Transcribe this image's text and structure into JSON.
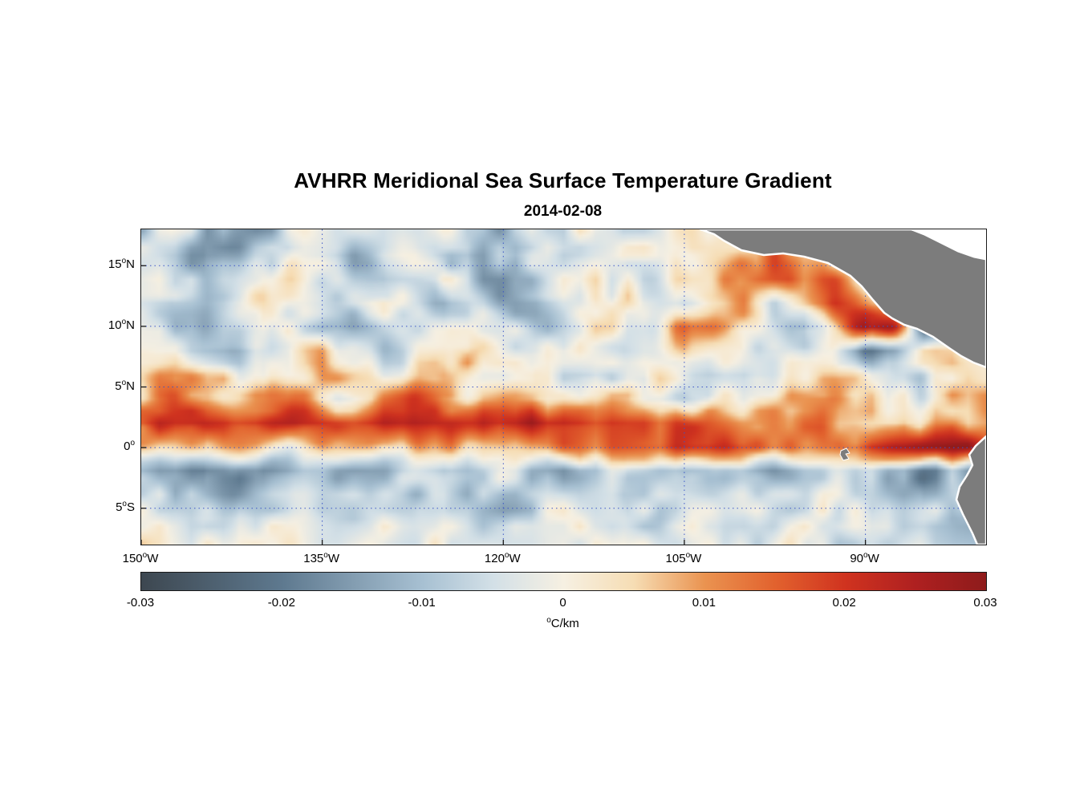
{
  "figure": {
    "title": "AVHRR Meridional Sea Surface Temperature Gradient",
    "subtitle": "2014-02-08"
  },
  "colors": {
    "land": "#7c7c7c",
    "coast_outline": "#ffffff",
    "caribbean_fill": "#ffffff",
    "grid_dots": "#3a55c8",
    "axis": "#1a1a1a",
    "background": "#ffffff"
  },
  "axes": {
    "xlim": [
      -150,
      -80
    ],
    "ylim": [
      -8,
      18
    ],
    "x_ticks": [
      {
        "lon": -150,
        "text": "150",
        "sup": "o",
        "suffix": "W"
      },
      {
        "lon": -135,
        "text": "135",
        "sup": "o",
        "suffix": "W"
      },
      {
        "lon": -120,
        "text": "120",
        "sup": "o",
        "suffix": "W"
      },
      {
        "lon": -105,
        "text": "105",
        "sup": "o",
        "suffix": "W"
      },
      {
        "lon": -90,
        "text": "90",
        "sup": "o",
        "suffix": "W"
      }
    ],
    "y_ticks": [
      {
        "lat": 15,
        "text": "15",
        "sup": "o",
        "suffix": "N"
      },
      {
        "lat": 10,
        "text": "10",
        "sup": "o",
        "suffix": "N"
      },
      {
        "lat": 5,
        "text": "5",
        "sup": "o",
        "suffix": "N"
      },
      {
        "lat": 0,
        "text": "0",
        "sup": "o",
        "suffix": ""
      },
      {
        "lat": -5,
        "text": "5",
        "sup": "o",
        "suffix": "S"
      }
    ]
  },
  "colorbar": {
    "min": -0.03,
    "max": 0.03,
    "ticks": [
      {
        "value": -0.03,
        "label": "-0.03"
      },
      {
        "value": -0.02,
        "label": "-0.02"
      },
      {
        "value": -0.01,
        "label": "-0.01"
      },
      {
        "value": 0,
        "label": "0"
      },
      {
        "value": 0.01,
        "label": "0.01"
      },
      {
        "value": 0.02,
        "label": "0.02"
      },
      {
        "value": 0.03,
        "label": "0.03"
      }
    ],
    "unit": {
      "sup": "o",
      "text": "C/km"
    },
    "stops": [
      [
        -0.03,
        "#3d4750"
      ],
      [
        -0.02,
        "#5e798f"
      ],
      [
        -0.01,
        "#a7c0d2"
      ],
      [
        -0.005,
        "#d3e0e7"
      ],
      [
        0.0,
        "#f6f0e2"
      ],
      [
        0.005,
        "#f6ddb4"
      ],
      [
        0.01,
        "#ea9350"
      ],
      [
        0.015,
        "#e2622e"
      ],
      [
        0.02,
        "#d0331f"
      ],
      [
        0.025,
        "#ae2020"
      ],
      [
        0.03,
        "#8e1b1b"
      ]
    ]
  },
  "chart_data": {
    "type": "heatmap",
    "title": "AVHRR Meridional Sea Surface Temperature Gradient",
    "subtitle": "2014-02-08",
    "colorbar_label": "°C/km",
    "colorbar_range": [
      -0.03,
      0.03
    ],
    "xlim": [
      -150,
      -80
    ],
    "ylim": [
      -8,
      18
    ],
    "grid": "dotted",
    "values_unit": "degC/km",
    "values_scale": 0.001,
    "lon": [
      -150,
      -147.5,
      -145,
      -142.5,
      -140,
      -137.5,
      -135,
      -132.5,
      -130,
      -127.5,
      -125,
      -122.5,
      -120,
      -117.5,
      -115,
      -112.5,
      -110,
      -107.5,
      -105,
      -102.5,
      -100,
      -97.5,
      -95,
      -92.5,
      -90,
      -87.5,
      -85,
      -82.5,
      -80
    ],
    "lat": [
      18,
      16,
      14,
      12,
      10,
      8,
      6,
      4,
      2,
      0,
      -2,
      -4,
      -6,
      -8
    ],
    "values": [
      [
        -8,
        -4,
        -12,
        -16,
        -10,
        -3,
        0,
        -4,
        -10,
        -6,
        -2,
        -6,
        -12,
        -8,
        -3,
        1,
        -5,
        -2,
        2,
        3,
        -1,
        1,
        2,
        0,
        0,
        0,
        0,
        0,
        0
      ],
      [
        -3,
        -8,
        -15,
        -12,
        -5,
        1,
        -7,
        -13,
        -6,
        -2,
        -8,
        -14,
        -9,
        -4,
        -7,
        -2,
        3,
        1,
        -3,
        4,
        8,
        18,
        6,
        2,
        0,
        0,
        0,
        0,
        0
      ],
      [
        2,
        -4,
        -10,
        -6,
        3,
        5,
        -3,
        -9,
        -12,
        -5,
        2,
        -10,
        -15,
        -8,
        -2,
        3,
        -2,
        -6,
        2,
        6,
        15,
        22,
        12,
        15,
        4,
        0,
        0,
        0,
        0
      ],
      [
        -6,
        -12,
        -8,
        -2,
        4,
        -2,
        -8,
        -4,
        2,
        -6,
        -12,
        -6,
        -10,
        -14,
        -6,
        1,
        4,
        -3,
        -8,
        3,
        10,
        -5,
        8,
        20,
        10,
        2,
        -4,
        -2,
        0
      ],
      [
        -2,
        -6,
        -10,
        -4,
        2,
        -4,
        -10,
        -12,
        -8,
        -6,
        -4,
        2,
        -2,
        -8,
        -4,
        3,
        1,
        -4,
        12,
        14,
        4,
        -6,
        -12,
        6,
        28,
        24,
        -22,
        -12,
        -3
      ],
      [
        3,
        -2,
        -8,
        -12,
        -6,
        2,
        6,
        -2,
        -8,
        -4,
        2,
        5,
        -2,
        -6,
        2,
        -2,
        -6,
        -3,
        8,
        2,
        -4,
        -8,
        -4,
        2,
        -18,
        -14,
        4,
        2,
        -2
      ],
      [
        6,
        12,
        8,
        2,
        -4,
        2,
        8,
        4,
        -2,
        4,
        8,
        2,
        -2,
        4,
        -4,
        -8,
        -4,
        2,
        -2,
        -6,
        -10,
        -4,
        2,
        6,
        4,
        -6,
        -8,
        2,
        4
      ],
      [
        4,
        16,
        10,
        6,
        8,
        12,
        6,
        -4,
        14,
        20,
        8,
        4,
        10,
        6,
        2,
        8,
        4,
        -2,
        -6,
        2,
        -2,
        6,
        10,
        14,
        6,
        2,
        -4,
        6,
        8
      ],
      [
        18,
        22,
        24,
        20,
        24,
        26,
        22,
        16,
        26,
        28,
        22,
        18,
        24,
        26,
        24,
        22,
        20,
        18,
        16,
        14,
        12,
        10,
        14,
        10,
        6,
        4,
        8,
        12,
        10
      ],
      [
        6,
        4,
        8,
        6,
        4,
        2,
        6,
        8,
        4,
        10,
        8,
        6,
        10,
        8,
        12,
        14,
        16,
        18,
        20,
        22,
        18,
        16,
        14,
        12,
        18,
        24,
        26,
        28,
        22
      ],
      [
        -12,
        -16,
        -20,
        -14,
        -18,
        -12,
        -8,
        -14,
        -10,
        -6,
        -12,
        -8,
        -4,
        -10,
        -14,
        -8,
        -4,
        -8,
        -12,
        -6,
        -10,
        -14,
        -8,
        -4,
        -8,
        -14,
        -18,
        -12,
        -16
      ],
      [
        -4,
        -8,
        -12,
        -16,
        -10,
        -4,
        -8,
        -2,
        -6,
        -10,
        -4,
        -8,
        -12,
        -6,
        -2,
        -6,
        -10,
        -4,
        -2,
        -6,
        -4,
        -8,
        -4,
        -2,
        -6,
        -10,
        -14,
        -8,
        -10
      ],
      [
        -2,
        -6,
        -4,
        -8,
        -4,
        0,
        -4,
        -8,
        -2,
        -6,
        -2,
        -6,
        -8,
        -4,
        0,
        -4,
        -2,
        -6,
        -4,
        -2,
        -6,
        -4,
        -2,
        -6,
        -4,
        -8,
        -6,
        -10,
        -8
      ],
      [
        0,
        -3,
        -2,
        -5,
        -2,
        1,
        -2,
        -4,
        0,
        -3,
        -1,
        -4,
        -5,
        -2,
        1,
        -2,
        0,
        -4,
        -2,
        0,
        -3,
        -2,
        0,
        -3,
        -2,
        -5,
        -4,
        -6,
        -5
      ]
    ]
  }
}
